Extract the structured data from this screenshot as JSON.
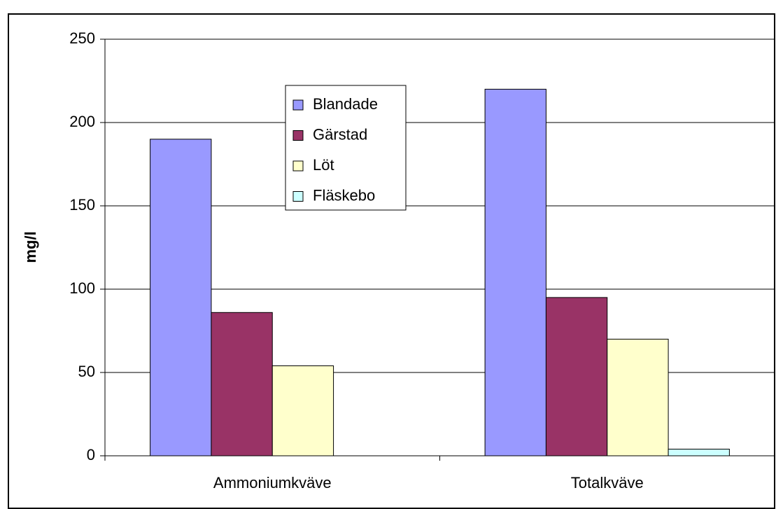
{
  "chart_data": {
    "type": "bar",
    "y_label": "mg/l",
    "categories": [
      "Ammoniumkväve",
      "Totalkväve"
    ],
    "series": [
      {
        "name": "Blandade",
        "color": "#9999ff",
        "values": [
          190,
          220
        ]
      },
      {
        "name": "Gärstad",
        "color": "#993366",
        "values": [
          86,
          95
        ]
      },
      {
        "name": "Löt",
        "color": "#ffffcc",
        "values": [
          54,
          70
        ]
      },
      {
        "name": "Fläskebo",
        "color": "#ccffff",
        "values": [
          0,
          4
        ]
      }
    ],
    "ylim": [
      0,
      250
    ],
    "yticks": [
      0,
      50,
      100,
      150,
      200,
      250
    ],
    "grid": true,
    "legend": "top-center"
  }
}
